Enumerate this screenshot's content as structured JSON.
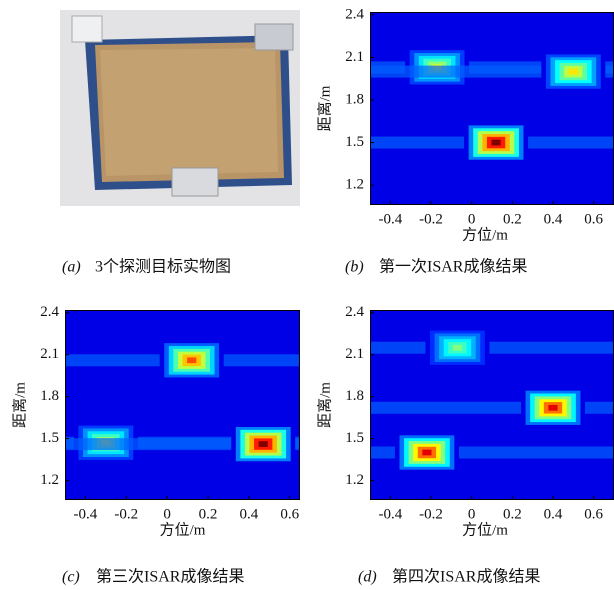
{
  "photo": {
    "label": "(a)",
    "caption": "3个探测目标实物图"
  },
  "chart_data": [
    {
      "type": "heatmap",
      "label": "(b)",
      "caption": "第一次ISAR成像结果",
      "xlabel": "方位/m",
      "ylabel": "距离/m",
      "xlim": [
        -0.5,
        0.7
      ],
      "xticks": [
        -0.4,
        -0.2,
        0,
        0.2,
        0.4,
        0.6
      ],
      "ylim": [
        1.06,
        2.42
      ],
      "yticks": [
        1.2,
        1.5,
        1.8,
        2.1,
        2.4
      ],
      "x": [
        -0.17,
        0.5,
        0.12
      ],
      "y": [
        2.03,
        2.0,
        1.5
      ],
      "values": [
        0.6,
        0.65,
        1.0
      ]
    },
    {
      "type": "heatmap",
      "label": "(c)",
      "caption": "第三次ISAR成像结果",
      "xlabel": "方位/m",
      "ylabel": "距离/m",
      "xlim": [
        -0.5,
        0.65
      ],
      "xticks": [
        -0.4,
        -0.2,
        0,
        0.2,
        0.4,
        0.6
      ],
      "ylim": [
        1.06,
        2.42
      ],
      "yticks": [
        1.2,
        1.5,
        1.8,
        2.1,
        2.4
      ],
      "x": [
        0.12,
        -0.3,
        0.47
      ],
      "y": [
        2.06,
        1.47,
        1.46
      ],
      "values": [
        0.8,
        0.6,
        1.0
      ]
    },
    {
      "type": "heatmap",
      "label": "(d)",
      "caption": "第四次ISAR成像结果",
      "xlabel": "方位/m",
      "ylabel": "距离/m",
      "xlim": [
        -0.5,
        0.7
      ],
      "xticks": [
        -0.4,
        -0.2,
        0,
        0.2,
        0.4,
        0.6
      ],
      "ylim": [
        1.06,
        2.42
      ],
      "yticks": [
        1.2,
        1.5,
        1.8,
        2.1,
        2.4
      ],
      "x": [
        -0.07,
        -0.22,
        0.4
      ],
      "y": [
        2.15,
        1.4,
        1.72
      ],
      "values": [
        0.5,
        0.9,
        0.9
      ]
    }
  ]
}
